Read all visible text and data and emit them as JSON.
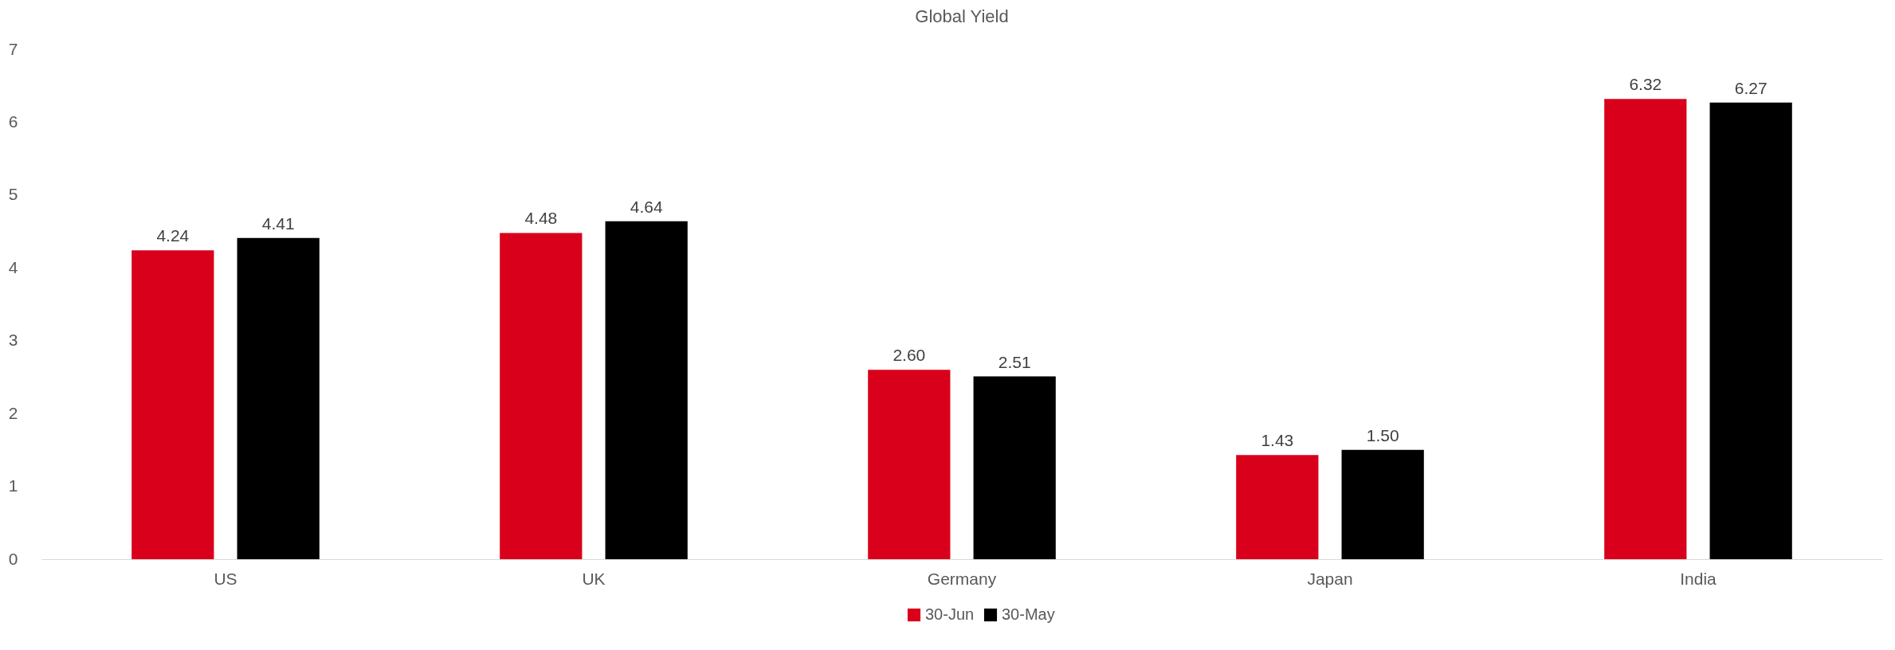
{
  "chart_data": {
    "type": "bar",
    "title": "Global Yield",
    "categories": [
      "US",
      "UK",
      "Germany",
      "Japan",
      "India"
    ],
    "series": [
      {
        "name": "30-Jun",
        "color": "#d9001b",
        "values": [
          4.24,
          4.48,
          2.6,
          1.43,
          6.32
        ],
        "value_labels": [
          "4.24",
          "4.48",
          "2.60",
          "1.43",
          "6.32"
        ]
      },
      {
        "name": "30-May",
        "color": "#000000",
        "values": [
          4.41,
          4.64,
          2.51,
          1.5,
          6.27
        ],
        "value_labels": [
          "4.41",
          "4.64",
          "2.51",
          "1.50",
          "6.27"
        ]
      }
    ],
    "ylim": [
      0,
      7
    ],
    "yticks": [
      0,
      1,
      2,
      3,
      4,
      5,
      6,
      7
    ],
    "grid": false,
    "legend": "bottom"
  }
}
